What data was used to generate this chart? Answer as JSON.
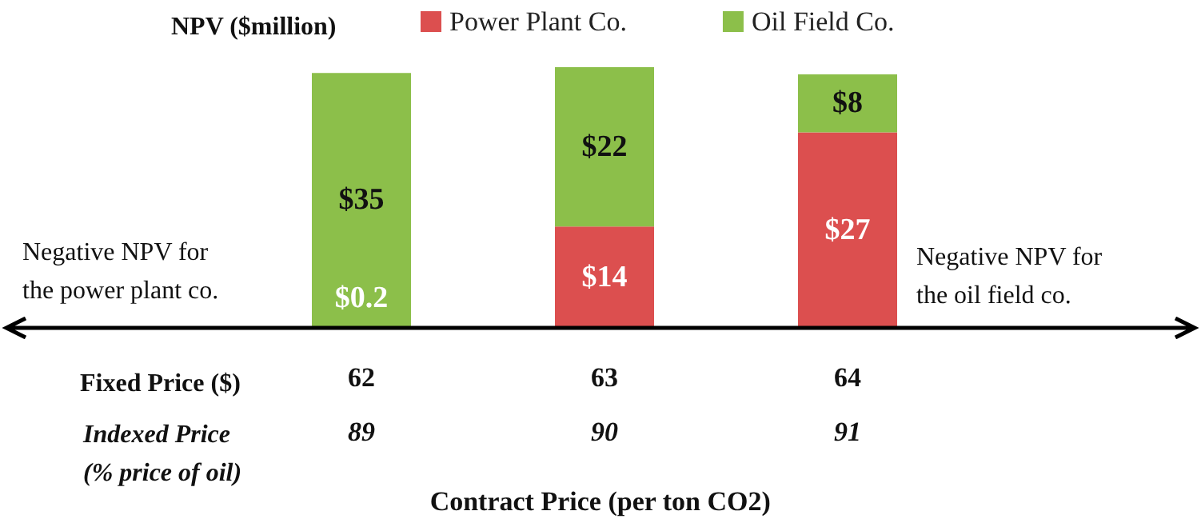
{
  "chart_data": {
    "type": "bar",
    "stacked": true,
    "ylabel": "NPV ($million)",
    "xlabel": "Contract Price (per ton CO2)",
    "categories": [
      "62\n89",
      "63\n90",
      "64\n91"
    ],
    "series": [
      {
        "name": "Power Plant Co.",
        "color": "#dc4f4f",
        "values": [
          0.2,
          14,
          27
        ],
        "value_labels": [
          "$0.2",
          "$14",
          "$27"
        ]
      },
      {
        "name": "Oil Field Co.",
        "color": "#8cbf4a",
        "values": [
          35,
          22,
          8
        ],
        "value_labels": [
          "$35",
          "$22",
          "$8"
        ]
      }
    ],
    "annotations": [
      "Fixed Price ($)",
      "Indexed Price\n(% price of oil)",
      "Negative NPV for\nthe power plant co.",
      "Negative NPV for\nthe oil field co."
    ],
    "legend": "top",
    "grid": false
  }
}
